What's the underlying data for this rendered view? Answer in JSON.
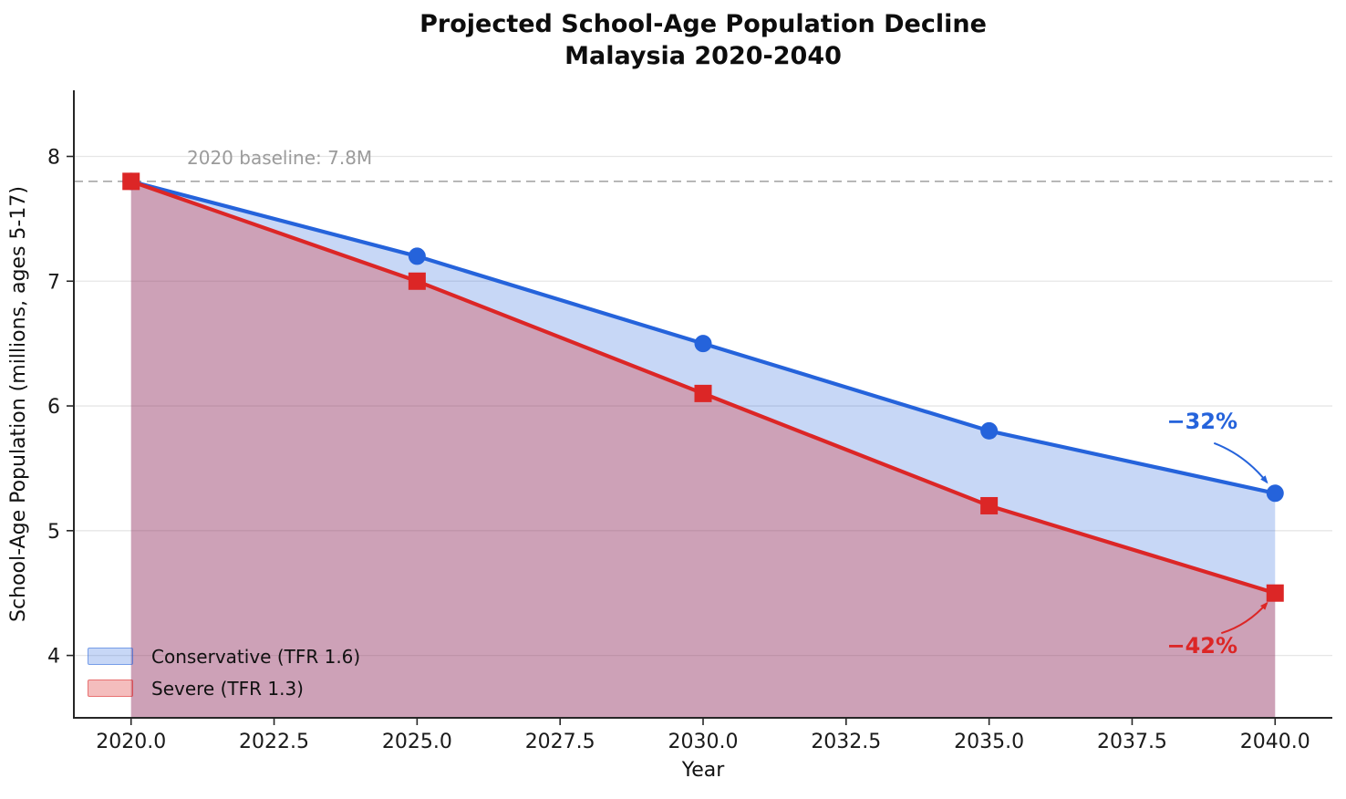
{
  "title": {
    "line1": "Projected School-Age Population Decline",
    "line2": "Malaysia 2020-2040"
  },
  "chart_data": {
    "type": "line",
    "title": "Projected School-Age Population Decline\nMalaysia 2020-2040",
    "xlabel": "Year",
    "ylabel": "School-Age Population (millions, ages 5-17)",
    "x": [
      2020,
      2025,
      2030,
      2035,
      2040
    ],
    "series": [
      {
        "name": "Conservative (TFR 1.6)",
        "values": [
          7.8,
          7.2,
          6.5,
          5.8,
          5.3
        ],
        "color": "#2563db",
        "fill": "rgba(37,99,219,0.26)",
        "marker": "circle",
        "final_change": "−32%"
      },
      {
        "name": "Severe (TFR 1.3)",
        "values": [
          7.8,
          7.0,
          6.1,
          5.2,
          4.5
        ],
        "color": "#dc2626",
        "fill": "rgba(220,38,38,0.30)",
        "marker": "square",
        "final_change": "−42%"
      }
    ],
    "baseline": {
      "value": 7.8,
      "label": "2020 baseline: 7.8M"
    },
    "annotations": [
      {
        "text": "−32%",
        "x": 2040,
        "y": 5.3,
        "color": "#2563db"
      },
      {
        "text": "−42%",
        "x": 2040,
        "y": 4.5,
        "color": "#dc2626"
      }
    ],
    "xticks": {
      "values": [
        2020,
        2022.5,
        2025,
        2027.5,
        2030,
        2032.5,
        2035,
        2037.5,
        2040
      ],
      "labels": [
        "2020.0",
        "2022.5",
        "2025.0",
        "2027.5",
        "2030.0",
        "2032.5",
        "2035.0",
        "2037.5",
        "2040.0"
      ]
    },
    "yticks": {
      "values": [
        4,
        5,
        6,
        7,
        8
      ],
      "labels": [
        "4",
        "5",
        "6",
        "7",
        "8"
      ]
    },
    "xlim": [
      2019,
      2041
    ],
    "ylim": [
      3.5,
      8.53
    ],
    "grid": "horizontal-only",
    "legend": {
      "position": "lower-left",
      "entries": [
        "Conservative (TFR 1.6)",
        "Severe (TFR 1.3)"
      ]
    },
    "colors": {
      "grid": "#e6e6e6",
      "baseline_line": "#a8a8a8",
      "baseline_text": "#9b9b9b",
      "spine": "#262626",
      "tick_text": "#1a1a1a"
    }
  }
}
